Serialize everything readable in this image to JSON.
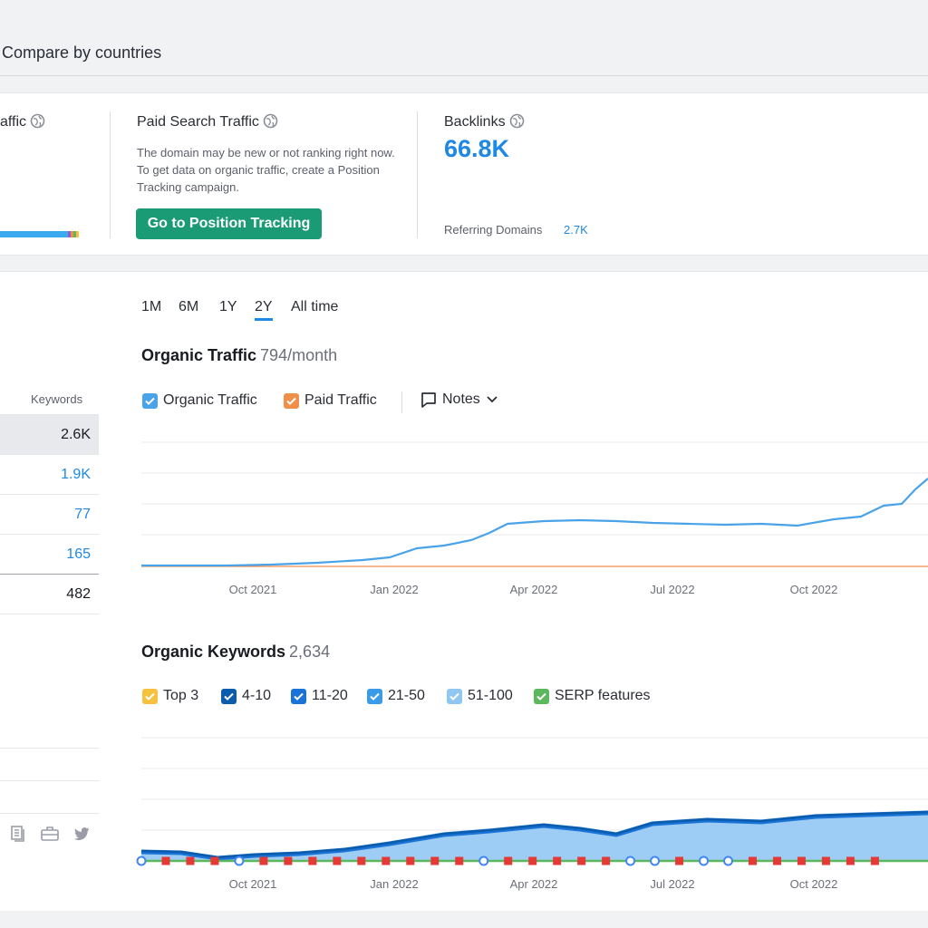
{
  "tabs": {
    "compare_label": "Compare by countries"
  },
  "metrics": {
    "organic_partial_label": "affic",
    "paid_label": "Paid Search Traffic",
    "paid_desc": "The domain may be new or not ranking right now. To get data on organic traffic, create a Position Tracking campaign.",
    "paid_button": "Go to Position Tracking",
    "backlinks_label": "Backlinks",
    "backlinks_value": "66.8K",
    "ref_domains_label": "Referring Domains",
    "ref_domains_value": "2.7K"
  },
  "sidebar": {
    "keywords_header": "Keywords",
    "rows": [
      {
        "value": "2.6K",
        "color": "#191b23"
      },
      {
        "value": "1.9K",
        "color": "#1e88e5"
      },
      {
        "value": "77",
        "color": "#1e88e5"
      },
      {
        "value": "165",
        "color": "#1e88e5"
      },
      {
        "value": "482",
        "color": "#191b23"
      }
    ]
  },
  "periods": [
    "1M",
    "6M",
    "1Y",
    "2Y",
    "All time"
  ],
  "active_period": "2Y",
  "organic_traffic": {
    "title": "Organic Traffic",
    "subtitle": "794/month",
    "legend": {
      "organic": "Organic Traffic",
      "paid": "Paid Traffic",
      "notes": "Notes"
    },
    "colors": {
      "organic": "#4aa3e8",
      "paid": "#f08f4a"
    }
  },
  "organic_keywords": {
    "title": "Organic Keywords",
    "subtitle": "2,634",
    "legend": [
      {
        "label": "Top 3",
        "color": "#f6c23e"
      },
      {
        "label": "4-10",
        "color": "#0b5cad"
      },
      {
        "label": "11-20",
        "color": "#1a73d6"
      },
      {
        "label": "21-50",
        "color": "#3a9ce8"
      },
      {
        "label": "51-100",
        "color": "#8fc6f2"
      },
      {
        "label": "SERP features",
        "color": "#5cb85c"
      }
    ]
  },
  "chart_data": [
    {
      "type": "line",
      "x_ticks": [
        "Oct 2021",
        "Jan 2022",
        "Apr 2022",
        "Jul 2022",
        "Oct 2022"
      ],
      "series": [
        {
          "name": "Organic Traffic",
          "points": [
            [
              0,
              1
            ],
            [
              30,
              1
            ],
            [
              60,
              3
            ],
            [
              90,
              10
            ],
            [
              120,
              15
            ],
            [
              150,
              30
            ],
            [
              180,
              40
            ],
            [
              210,
              60
            ],
            [
              240,
              85
            ],
            [
              270,
              92
            ],
            [
              300,
              94
            ],
            [
              330,
              93
            ],
            [
              360,
              90
            ],
            [
              390,
              89
            ],
            [
              420,
              88
            ],
            [
              450,
              89
            ],
            [
              480,
              88
            ],
            [
              510,
              95
            ],
            [
              540,
              100
            ],
            [
              570,
              130
            ],
            [
              600,
              160
            ],
            [
              620,
              200
            ]
          ]
        },
        {
          "name": "Paid Traffic",
          "points": [
            [
              0,
              0
            ],
            [
              620,
              0
            ]
          ]
        }
      ],
      "ylim": [
        0,
        200
      ]
    },
    {
      "type": "area",
      "x_ticks": [
        "Oct 2021",
        "Jan 2022",
        "Apr 2022",
        "Jul 2022",
        "Oct 2022"
      ],
      "series": [
        {
          "name": "4-10",
          "points": [
            [
              0,
              10
            ],
            [
              40,
              10
            ],
            [
              80,
              5
            ],
            [
              120,
              10
            ],
            [
              180,
              15
            ],
            [
              240,
              25
            ],
            [
              300,
              35
            ],
            [
              350,
              40
            ],
            [
              400,
              45
            ],
            [
              450,
              50
            ],
            [
              480,
              40
            ],
            [
              520,
              55
            ],
            [
              580,
              55
            ],
            [
              640,
              50
            ],
            [
              700,
              55
            ],
            [
              760,
              58
            ],
            [
              800,
              60
            ],
            [
              868,
              60
            ]
          ]
        }
      ]
    }
  ]
}
